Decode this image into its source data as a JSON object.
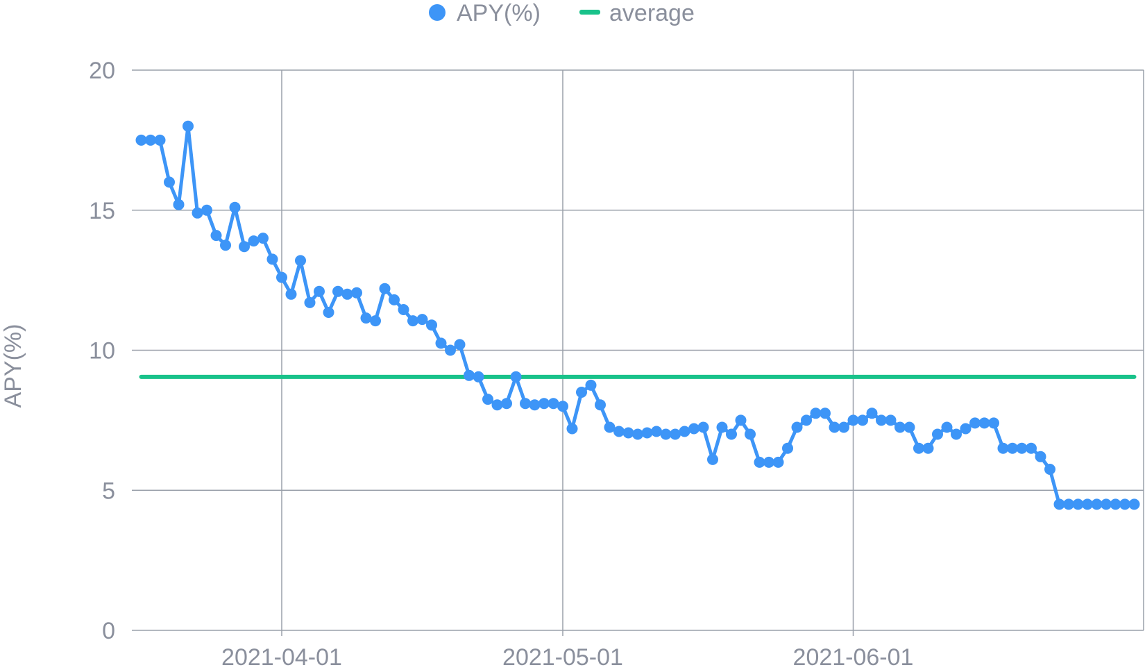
{
  "chart_data": {
    "type": "line",
    "ylabel": "APY(%)",
    "ylim": [
      0,
      20
    ],
    "yticks": [
      0,
      5,
      10,
      15,
      20
    ],
    "xlim": [
      "2021-03-16",
      "2021-07-02"
    ],
    "xticks": [
      "2021-04-01",
      "2021-05-01",
      "2021-06-01"
    ],
    "grid": true,
    "legend_position": "top-center",
    "colors": {
      "apy": "#3d95f7",
      "average": "#19c28a",
      "grid": "#9aa0aa",
      "text": "#8a8f9c"
    },
    "legend": [
      {
        "label": "APY(%)",
        "marker": "circle"
      },
      {
        "label": "average",
        "marker": "line"
      }
    ],
    "series": [
      {
        "name": "APY(%)",
        "start_date": "2021-03-17",
        "values": [
          17.5,
          17.5,
          17.5,
          16.0,
          15.2,
          18.0,
          14.9,
          15.0,
          14.1,
          13.75,
          15.1,
          13.7,
          13.9,
          14.0,
          13.25,
          12.6,
          12.0,
          13.2,
          11.7,
          12.1,
          11.35,
          12.1,
          12.0,
          12.05,
          11.15,
          11.05,
          12.2,
          11.8,
          11.45,
          11.05,
          11.1,
          10.9,
          10.25,
          10.0,
          10.2,
          9.1,
          9.05,
          8.25,
          8.05,
          8.1,
          9.05,
          8.1,
          8.05,
          8.1,
          8.1,
          8.0,
          7.2,
          8.5,
          8.75,
          8.05,
          7.25,
          7.1,
          7.05,
          7.0,
          7.05,
          7.1,
          7.0,
          7.0,
          7.1,
          7.2,
          7.25,
          6.1,
          7.25,
          7.0,
          7.5,
          7.0,
          6.0,
          6.0,
          6.0,
          6.5,
          7.25,
          7.5,
          7.75,
          7.75,
          7.25,
          7.25,
          7.5,
          7.5,
          7.75,
          7.5,
          7.5,
          7.25,
          7.25,
          6.5,
          6.5,
          7.0,
          7.25,
          7.0,
          7.2,
          7.4,
          7.4,
          7.4,
          6.5,
          6.5,
          6.5,
          6.5,
          6.2,
          5.75,
          4.5,
          4.5,
          4.5,
          4.5,
          4.5,
          4.5,
          4.5,
          4.5,
          4.5
        ]
      },
      {
        "name": "average",
        "value": 9.05
      }
    ]
  }
}
